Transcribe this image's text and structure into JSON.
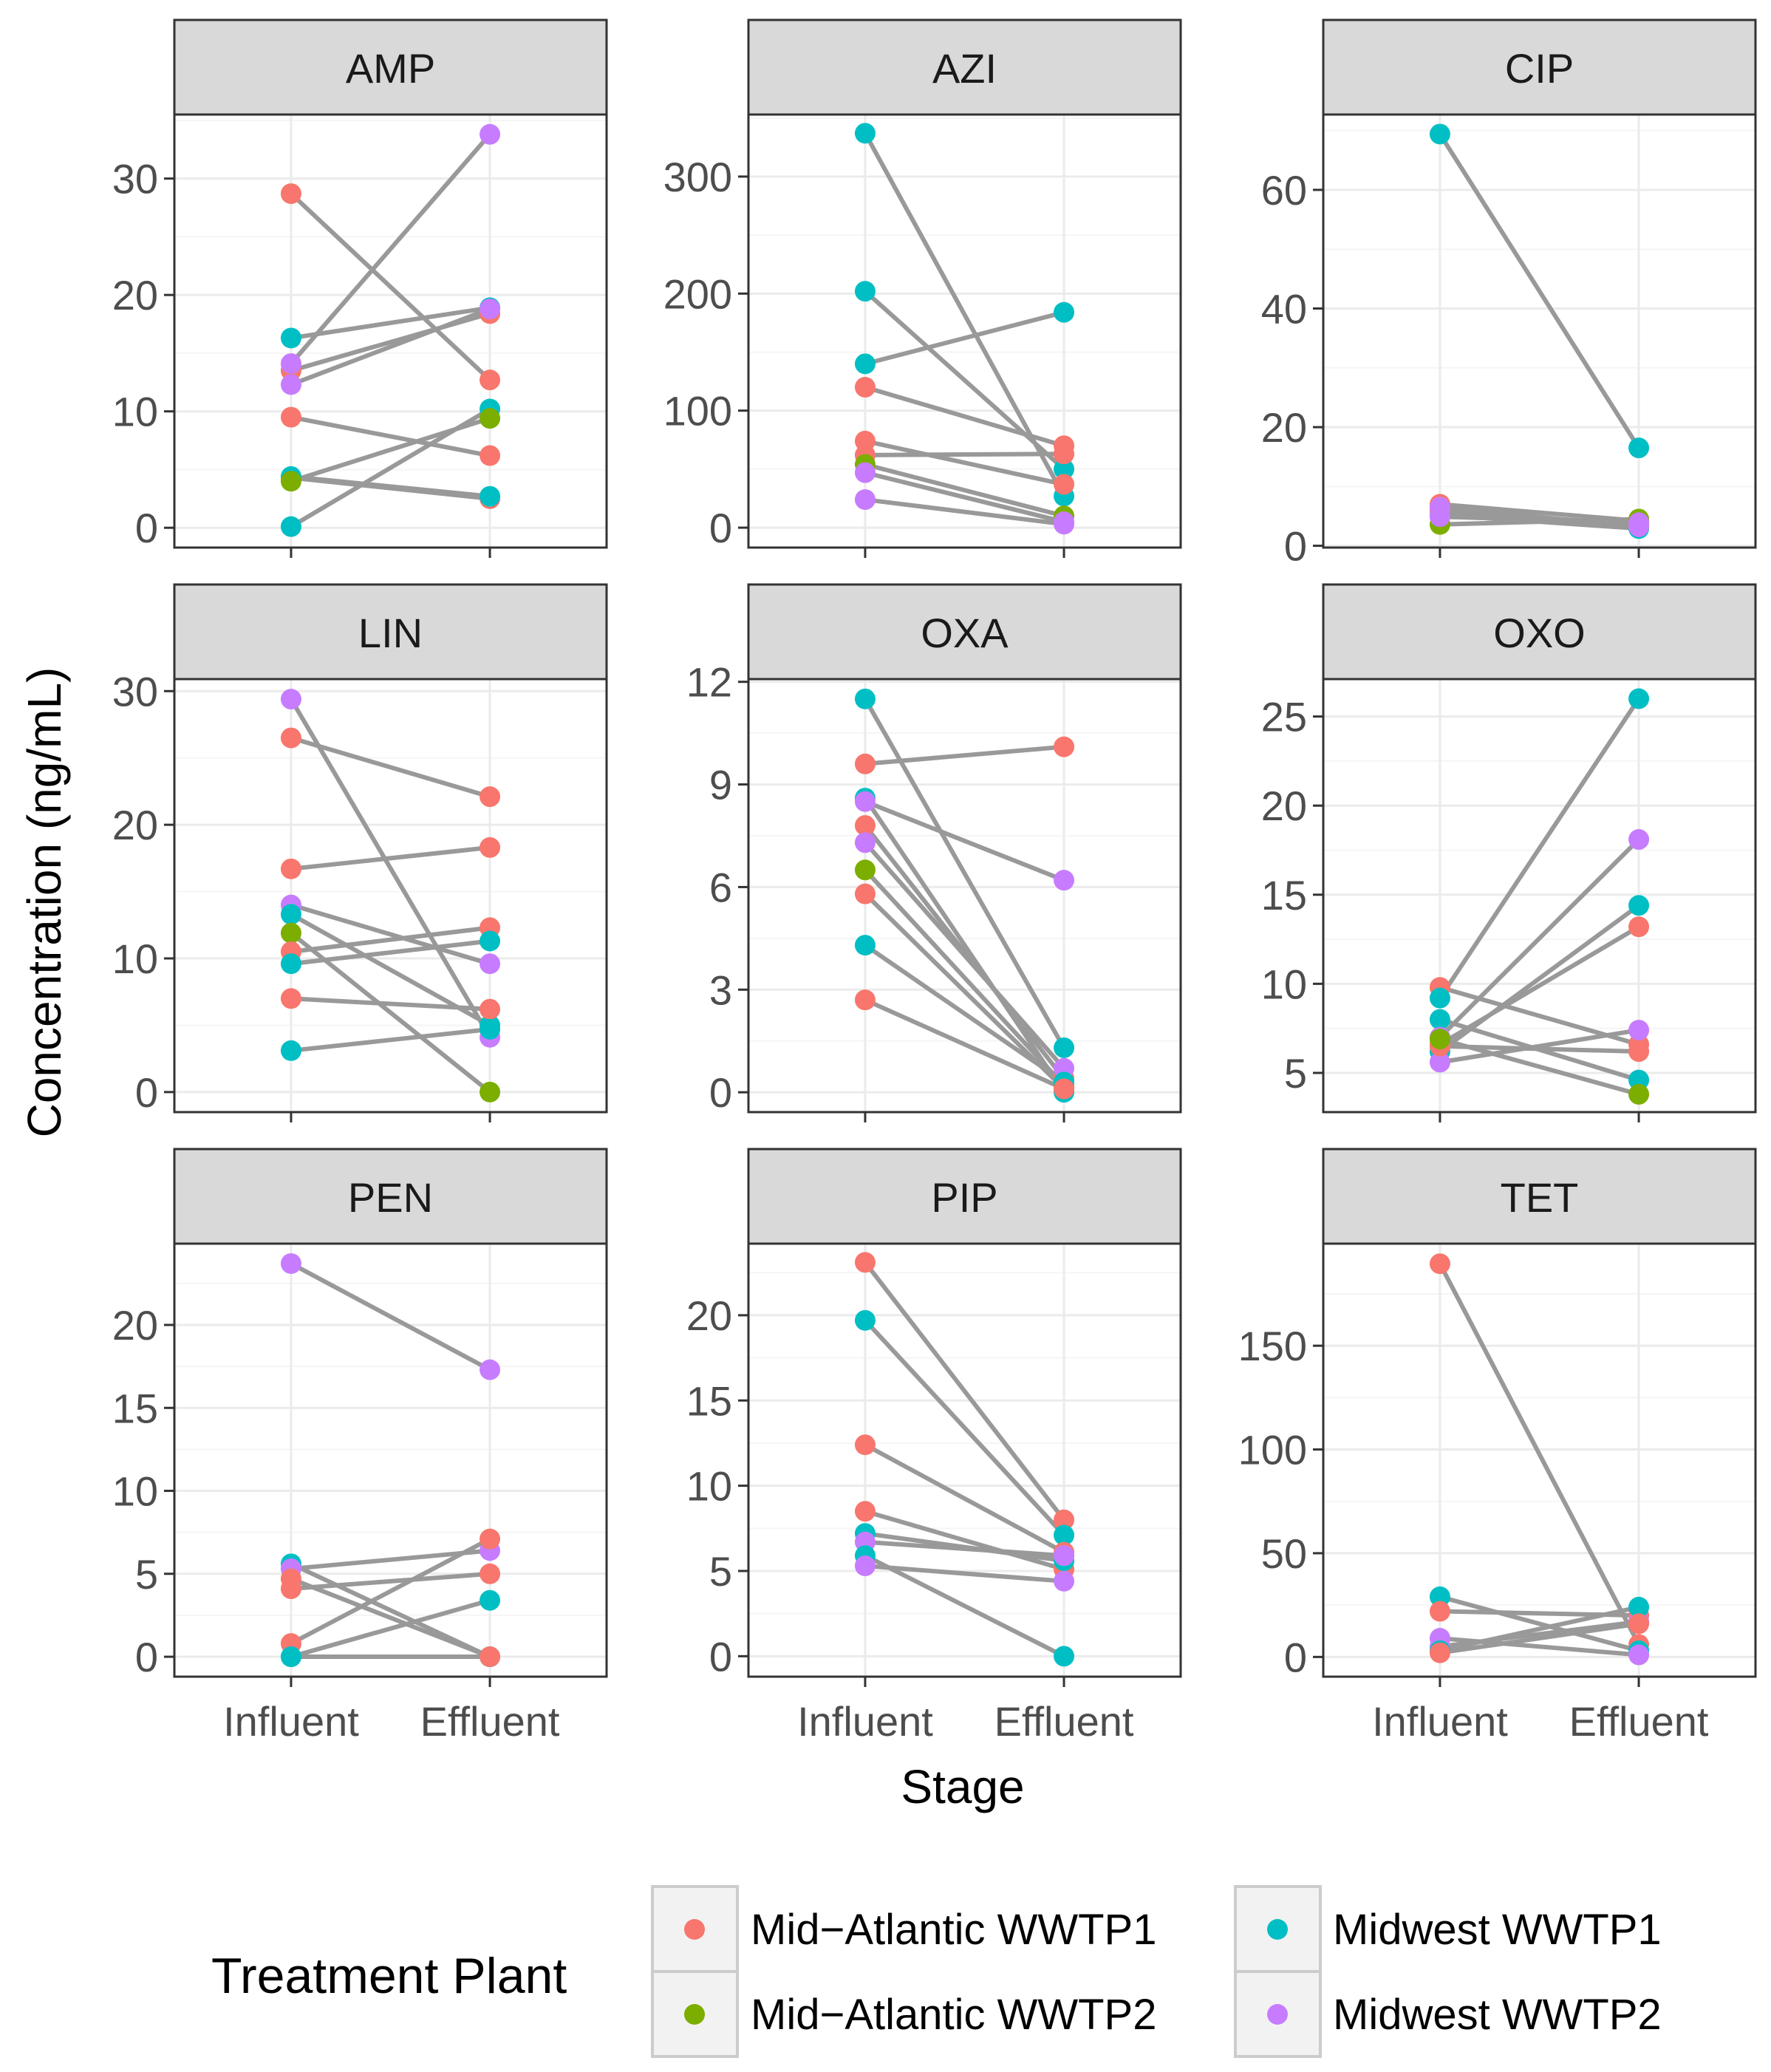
{
  "figure": {
    "x_axis_title": "Stage",
    "y_axis_title": "Concentration (ng/mL)"
  },
  "legend": {
    "title": "Treatment Plant",
    "entries": [
      {
        "label": "Mid−Atlantic WWTP1",
        "color": "#F8766D"
      },
      {
        "label": "Midwest WWTP1",
        "color": "#00BFC4"
      },
      {
        "label": "Mid−Atlantic WWTP2",
        "color": "#7CAE00"
      },
      {
        "label": "Midwest WWTP2",
        "color": "#C77CFF"
      }
    ]
  },
  "colors": {
    "Mid-Atlantic WWTP1": "#F8766D",
    "Mid-Atlantic WWTP2": "#7CAE00",
    "Midwest WWTP1": "#00BFC4",
    "Midwest WWTP2": "#C77CFF",
    "line": "#999999",
    "strip_fill": "#D9D9D9",
    "grid_major": "#EBEBEB",
    "grid_minor": "#F5F5F5",
    "border": "#333333"
  },
  "chart_data": [
    {
      "type": "line",
      "title": "AMP",
      "categories": [
        "Influent",
        "Effluent"
      ],
      "ylim": [
        -1.7,
        35.5
      ],
      "yticks": [
        0,
        10,
        20,
        30
      ],
      "pairs": [
        {
          "plant": "Mid-Atlantic WWTP1",
          "values": [
            28.7,
            12.7
          ]
        },
        {
          "plant": "Mid-Atlantic WWTP1",
          "values": [
            9.5,
            6.2
          ]
        },
        {
          "plant": "Mid-Atlantic WWTP1",
          "values": [
            4.3,
            2.5
          ]
        },
        {
          "plant": "Mid-Atlantic WWTP1",
          "values": [
            13.5,
            18.4
          ]
        },
        {
          "plant": "Midwest WWTP1",
          "values": [
            16.3,
            18.9
          ]
        },
        {
          "plant": "Midwest WWTP1",
          "values": [
            4.4,
            2.7
          ]
        },
        {
          "plant": "Midwest WWTP1",
          "values": [
            0.1,
            10.2
          ]
        },
        {
          "plant": "Mid-Atlantic WWTP2",
          "values": [
            4.0,
            9.4
          ]
        },
        {
          "plant": "Midwest WWTP2",
          "values": [
            14.1,
            33.8
          ]
        },
        {
          "plant": "Midwest WWTP2",
          "values": [
            12.3,
            18.8
          ]
        }
      ]
    },
    {
      "type": "line",
      "title": "AZI",
      "categories": [
        "Influent",
        "Effluent"
      ],
      "ylim": [
        -17,
        353
      ],
      "yticks": [
        0,
        100,
        200,
        300
      ],
      "pairs": [
        {
          "plant": "Midwest WWTP1",
          "values": [
            337,
            27
          ]
        },
        {
          "plant": "Midwest WWTP1",
          "values": [
            202,
            50
          ]
        },
        {
          "plant": "Midwest WWTP1",
          "values": [
            140,
            184
          ]
        },
        {
          "plant": "Mid-Atlantic WWTP1",
          "values": [
            120,
            70
          ]
        },
        {
          "plant": "Mid-Atlantic WWTP1",
          "values": [
            74,
            37
          ]
        },
        {
          "plant": "Mid-Atlantic WWTP1",
          "values": [
            62,
            63
          ]
        },
        {
          "plant": "Mid-Atlantic WWTP2",
          "values": [
            54,
            10
          ]
        },
        {
          "plant": "Midwest WWTP2",
          "values": [
            47,
            5
          ]
        },
        {
          "plant": "Midwest WWTP2",
          "values": [
            24,
            3
          ]
        }
      ]
    },
    {
      "type": "line",
      "title": "CIP",
      "categories": [
        "Influent",
        "Effluent"
      ],
      "ylim": [
        -0.3,
        72.7
      ],
      "yticks": [
        0,
        20,
        40,
        60
      ],
      "pairs": [
        {
          "plant": "Midwest WWTP1",
          "values": [
            69.4,
            16.5
          ]
        },
        {
          "plant": "Midwest WWTP1",
          "values": [
            5.2,
            2.9
          ]
        },
        {
          "plant": "Mid-Atlantic WWTP1",
          "values": [
            7.0,
            4.2
          ]
        },
        {
          "plant": "Mid-Atlantic WWTP1",
          "values": [
            5.9,
            3.6
          ]
        },
        {
          "plant": "Mid-Atlantic WWTP2",
          "values": [
            3.6,
            4.5
          ]
        },
        {
          "plant": "Midwest WWTP2",
          "values": [
            6.5,
            3.2
          ]
        },
        {
          "plant": "Midwest WWTP2",
          "values": [
            4.9,
            3.9
          ]
        }
      ]
    },
    {
      "type": "line",
      "title": "LIN",
      "categories": [
        "Influent",
        "Effluent"
      ],
      "ylim": [
        -1.5,
        30.9
      ],
      "yticks": [
        0,
        10,
        20,
        30
      ],
      "pairs": [
        {
          "plant": "Midwest WWTP2",
          "values": [
            29.4,
            4.1
          ]
        },
        {
          "plant": "Mid-Atlantic WWTP1",
          "values": [
            26.5,
            22.1
          ]
        },
        {
          "plant": "Mid-Atlantic WWTP1",
          "values": [
            16.7,
            18.3
          ]
        },
        {
          "plant": "Midwest WWTP2",
          "values": [
            14.0,
            9.6
          ]
        },
        {
          "plant": "Midwest WWTP1",
          "values": [
            13.3,
            5.0
          ]
        },
        {
          "plant": "Mid-Atlantic WWTP2",
          "values": [
            11.9,
            0.0
          ]
        },
        {
          "plant": "Mid-Atlantic WWTP1",
          "values": [
            10.5,
            12.3
          ]
        },
        {
          "plant": "Midwest WWTP1",
          "values": [
            9.6,
            11.3
          ]
        },
        {
          "plant": "Mid-Atlantic WWTP1",
          "values": [
            7.0,
            6.2
          ]
        },
        {
          "plant": "Midwest WWTP1",
          "values": [
            3.1,
            4.7
          ]
        }
      ]
    },
    {
      "type": "line",
      "title": "OXA",
      "categories": [
        "Influent",
        "Effluent"
      ],
      "ylim": [
        -0.58,
        12.08
      ],
      "yticks": [
        0,
        3,
        6,
        9,
        12
      ],
      "pairs": [
        {
          "plant": "Midwest WWTP1",
          "values": [
            11.5,
            1.3
          ]
        },
        {
          "plant": "Mid-Atlantic WWTP1",
          "values": [
            9.6,
            10.1
          ]
        },
        {
          "plant": "Midwest WWTP1",
          "values": [
            8.6,
            0.0
          ]
        },
        {
          "plant": "Midwest WWTP2",
          "values": [
            8.5,
            6.2
          ]
        },
        {
          "plant": "Mid-Atlantic WWTP1",
          "values": [
            7.8,
            0.4
          ]
        },
        {
          "plant": "Midwest WWTP2",
          "values": [
            7.3,
            0.7
          ]
        },
        {
          "plant": "Mid-Atlantic WWTP2",
          "values": [
            6.5,
            0.2
          ]
        },
        {
          "plant": "Mid-Atlantic WWTP1",
          "values": [
            5.8,
            0.1
          ]
        },
        {
          "plant": "Midwest WWTP1",
          "values": [
            4.3,
            0.3
          ]
        },
        {
          "plant": "Mid-Atlantic WWTP1",
          "values": [
            2.7,
            0.1
          ]
        }
      ]
    },
    {
      "type": "line",
      "title": "OXO",
      "categories": [
        "Influent",
        "Effluent"
      ],
      "ylim": [
        2.8,
        27.1
      ],
      "yticks": [
        5,
        10,
        15,
        20,
        25
      ],
      "pairs": [
        {
          "plant": "Mid-Atlantic WWTP1",
          "values": [
            9.8,
            6.6
          ]
        },
        {
          "plant": "Midwest WWTP1",
          "values": [
            9.2,
            26.0
          ]
        },
        {
          "plant": "Midwest WWTP1",
          "values": [
            8.0,
            4.6
          ]
        },
        {
          "plant": "Midwest WWTP2",
          "values": [
            7.0,
            18.1
          ]
        },
        {
          "plant": "Mid-Atlantic WWTP1",
          "values": [
            6.6,
            13.2
          ]
        },
        {
          "plant": "Midwest WWTP1",
          "values": [
            6.2,
            14.4
          ]
        },
        {
          "plant": "Midwest WWTP2",
          "values": [
            5.6,
            7.4
          ]
        },
        {
          "plant": "Mid-Atlantic WWTP1",
          "values": [
            6.5,
            6.2
          ]
        },
        {
          "plant": "Mid-Atlantic WWTP2",
          "values": [
            6.9,
            3.8
          ]
        }
      ]
    },
    {
      "type": "line",
      "title": "PEN",
      "categories": [
        "Influent",
        "Effluent"
      ],
      "ylim": [
        -1.2,
        24.9
      ],
      "yticks": [
        0,
        5,
        10,
        15,
        20
      ],
      "pairs": [
        {
          "plant": "Midwest WWTP2",
          "values": [
            23.7,
            17.3
          ]
        },
        {
          "plant": "Midwest WWTP1",
          "values": [
            5.6,
            0.0
          ]
        },
        {
          "plant": "Midwest WWTP2",
          "values": [
            5.3,
            6.4
          ]
        },
        {
          "plant": "Mid-Atlantic WWTP1",
          "values": [
            4.1,
            5.0
          ]
        },
        {
          "plant": "Mid-Atlantic WWTP1",
          "values": [
            0.8,
            7.1
          ]
        },
        {
          "plant": "Midwest WWTP1",
          "values": [
            0.0,
            3.4
          ]
        },
        {
          "plant": "Midwest WWTP1",
          "values": [
            0.0,
            0.0
          ]
        },
        {
          "plant": "Mid-Atlantic WWTP1",
          "values": [
            4.7,
            0.0
          ]
        }
      ]
    },
    {
      "type": "line",
      "title": "PIP",
      "categories": [
        "Influent",
        "Effluent"
      ],
      "ylim": [
        -1.2,
        24.2
      ],
      "yticks": [
        0,
        5,
        10,
        15,
        20
      ],
      "pairs": [
        {
          "plant": "Mid-Atlantic WWTP1",
          "values": [
            23.1,
            8.0
          ]
        },
        {
          "plant": "Midwest WWTP1",
          "values": [
            19.7,
            7.1
          ]
        },
        {
          "plant": "Mid-Atlantic WWTP1",
          "values": [
            12.4,
            6.1
          ]
        },
        {
          "plant": "Mid-Atlantic WWTP1",
          "values": [
            8.5,
            5.1
          ]
        },
        {
          "plant": "Midwest WWTP1",
          "values": [
            7.2,
            5.6
          ]
        },
        {
          "plant": "Midwest WWTP2",
          "values": [
            6.7,
            5.9
          ]
        },
        {
          "plant": "Midwest WWTP1",
          "values": [
            5.9,
            0.0
          ]
        },
        {
          "plant": "Midwest WWTP2",
          "values": [
            5.3,
            4.4
          ]
        }
      ]
    },
    {
      "type": "line",
      "title": "TET",
      "categories": [
        "Influent",
        "Effluent"
      ],
      "ylim": [
        -9.5,
        199.2
      ],
      "yticks": [
        0,
        50,
        100,
        150
      ],
      "pairs": [
        {
          "plant": "Mid-Atlantic WWTP1",
          "values": [
            189.5,
            6
          ]
        },
        {
          "plant": "Midwest WWTP1",
          "values": [
            29,
            3
          ]
        },
        {
          "plant": "Mid-Atlantic WWTP1",
          "values": [
            22,
            20
          ]
        },
        {
          "plant": "Midwest WWTP2",
          "values": [
            9,
            1
          ]
        },
        {
          "plant": "Midwest WWTP2",
          "values": [
            5,
            17
          ]
        },
        {
          "plant": "Midwest WWTP1",
          "values": [
            3,
            24
          ]
        },
        {
          "plant": "Mid-Atlantic WWTP1",
          "values": [
            2,
            16
          ]
        }
      ]
    }
  ]
}
